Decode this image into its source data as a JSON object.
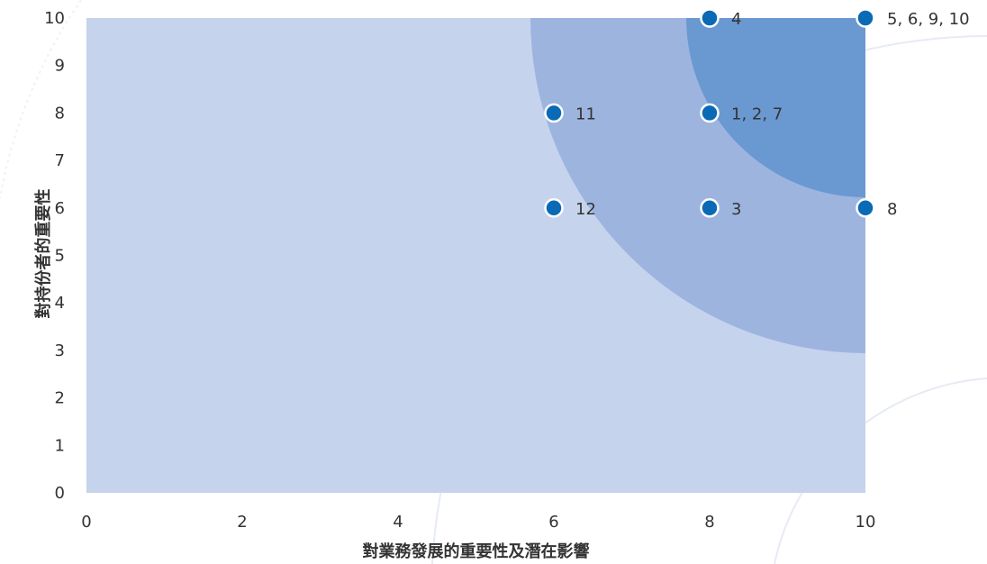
{
  "chart_data": {
    "type": "scatter",
    "title": "",
    "xlabel": "對業務發展的重要性及潛在影響",
    "ylabel": "對持份者的重要性",
    "xlim": [
      0,
      10
    ],
    "ylim": [
      0,
      10
    ],
    "x_ticks": [
      0,
      2,
      4,
      6,
      8,
      10
    ],
    "y_ticks": [
      0,
      1,
      2,
      3,
      4,
      5,
      6,
      7,
      8,
      9,
      10
    ],
    "grid": false,
    "legend": "none",
    "zones": [
      {
        "radius": 0,
        "color": "#c5d3ed"
      },
      {
        "radius": 4.3,
        "color": "#9db4df"
      },
      {
        "radius": 2.3,
        "color": "#6a98d1"
      }
    ],
    "point_color": "#0a6ab5",
    "points": [
      {
        "x": 8,
        "y": 10,
        "label": "4"
      },
      {
        "x": 10,
        "y": 10,
        "label": "5, 6, 9, 10"
      },
      {
        "x": 6,
        "y": 8,
        "label": "11"
      },
      {
        "x": 8,
        "y": 8,
        "label": "1, 2, 7"
      },
      {
        "x": 6,
        "y": 6,
        "label": "12"
      },
      {
        "x": 8,
        "y": 6,
        "label": "3"
      },
      {
        "x": 10,
        "y": 6,
        "label": "8"
      }
    ]
  }
}
